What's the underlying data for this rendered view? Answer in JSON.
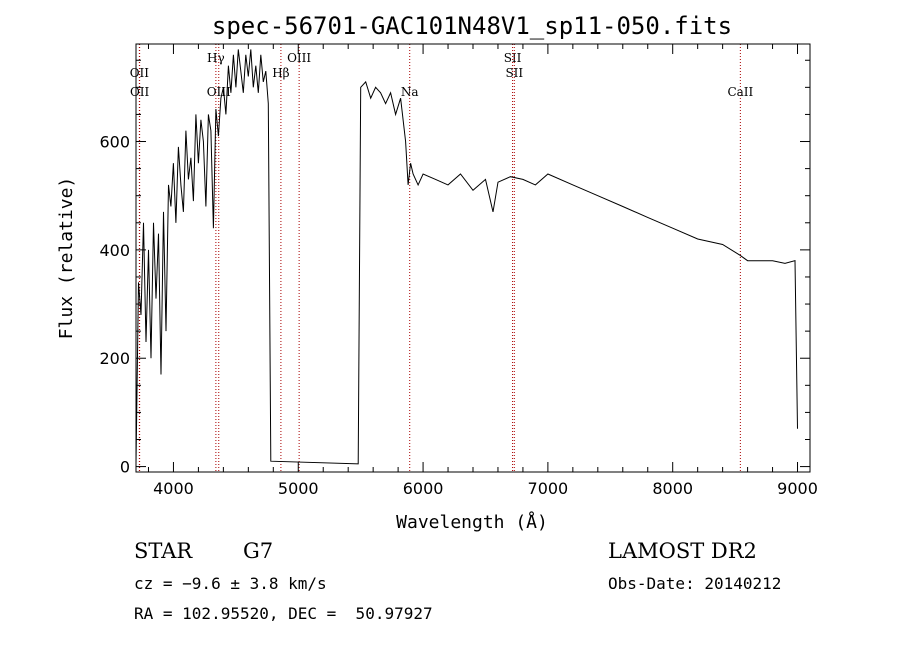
{
  "chart_data": {
    "type": "line",
    "title": "spec-56701-GAC101N48V1_sp11-050.fits",
    "xlabel": "Wavelength (Å)",
    "ylabel": "Flux (relative)",
    "xlim": [
      3700,
      9100
    ],
    "ylim": [
      -10,
      780
    ],
    "xticks": [
      4000,
      5000,
      6000,
      7000,
      8000,
      9000
    ],
    "xtick_labels": [
      "4000",
      "5000",
      "6000",
      "7000",
      "8000",
      "9000"
    ],
    "yticks": [
      0,
      200,
      400,
      600
    ],
    "ytick_labels": [
      "0",
      "200",
      "400",
      "600"
    ],
    "grid": false,
    "line_color": "#000000",
    "marker_color": "#aa0000",
    "spectral_lines": [
      {
        "label": "OII",
        "x": 3727,
        "row": 0
      },
      {
        "label": "OII",
        "x": 3729,
        "row": 1
      },
      {
        "label": "Hγ",
        "x": 4340,
        "row": -1
      },
      {
        "label": "OIII",
        "x": 4363,
        "row": 1
      },
      {
        "label": "Hβ",
        "x": 4861,
        "row": 0
      },
      {
        "label": "OIII",
        "x": 5007,
        "row": -1
      },
      {
        "label": "Na",
        "x": 5893,
        "row": 1
      },
      {
        "label": "SII",
        "x": 6717,
        "row": -1
      },
      {
        "label": "SII",
        "x": 6731,
        "row": 0
      },
      {
        "label": "CaII",
        "x": 8542,
        "row": 1
      }
    ],
    "series": [
      {
        "x": [
          3700,
          3720,
          3740,
          3760,
          3780,
          3800,
          3820,
          3840,
          3860,
          3880,
          3900,
          3920,
          3940,
          3960,
          3980,
          4000,
          4020,
          4040,
          4060,
          4080,
          4100,
          4120,
          4140,
          4160,
          4180,
          4200,
          4220,
          4240,
          4260,
          4280,
          4300,
          4320,
          4340,
          4360,
          4380,
          4400,
          4420,
          4440,
          4460,
          4480,
          4500,
          4520,
          4540,
          4560,
          4580,
          4600,
          4620,
          4640,
          4660,
          4680,
          4700,
          4720,
          4740,
          4760,
          4780,
          5480,
          5500,
          5540,
          5580,
          5620,
          5660,
          5700,
          5740,
          5780,
          5820,
          5860,
          5880,
          5900,
          5920,
          5960,
          6000,
          6100,
          6200,
          6300,
          6400,
          6500,
          6560,
          6600,
          6700,
          6800,
          6900,
          7000,
          7200,
          7400,
          7600,
          7800,
          8000,
          8200,
          8400,
          8540,
          8600,
          8800,
          8900,
          8980,
          9000
        ],
        "y": [
          5,
          340,
          280,
          450,
          230,
          400,
          200,
          450,
          310,
          430,
          170,
          470,
          250,
          520,
          480,
          560,
          450,
          590,
          520,
          470,
          620,
          530,
          570,
          490,
          650,
          560,
          640,
          600,
          480,
          650,
          620,
          440,
          660,
          610,
          680,
          700,
          650,
          740,
          690,
          760,
          700,
          770,
          730,
          690,
          760,
          720,
          770,
          700,
          740,
          690,
          760,
          710,
          730,
          670,
          10,
          5,
          700,
          710,
          680,
          700,
          690,
          670,
          690,
          650,
          680,
          600,
          520,
          560,
          540,
          520,
          540,
          530,
          520,
          540,
          510,
          530,
          470,
          525,
          535,
          530,
          520,
          540,
          520,
          500,
          480,
          460,
          440,
          420,
          410,
          390,
          380,
          380,
          375,
          380,
          70
        ]
      }
    ]
  },
  "info": {
    "object_class": "STAR",
    "subclass": "G7",
    "cz": "cz = −9.6 ± 3.8 km/s",
    "coords": "RA = 102.95520, DEC =  50.97927",
    "survey": "LAMOST DR2",
    "obs_date": "Obs-Date: 20140212"
  }
}
